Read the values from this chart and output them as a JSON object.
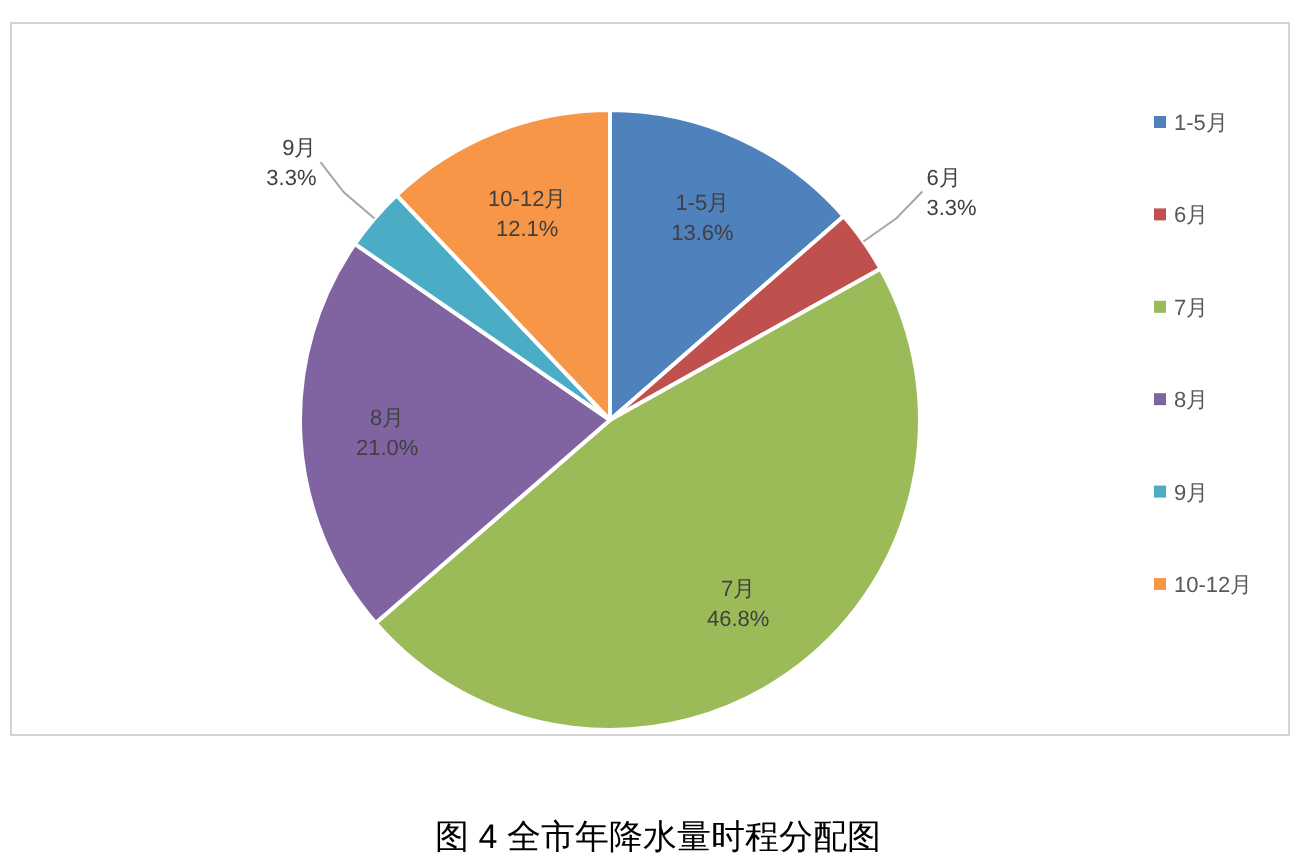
{
  "chart_data": {
    "type": "pie",
    "title": "图 4 全市年降水量时程分配图",
    "categories": [
      "1-5月",
      "6月",
      "7月",
      "8月",
      "9月",
      "10-12月"
    ],
    "values": [
      13.6,
      3.3,
      46.8,
      21.0,
      3.3,
      12.1
    ],
    "value_labels": [
      "13.6%",
      "3.3%",
      "46.8%",
      "21.0%",
      "3.3%",
      "12.1%"
    ],
    "colors": [
      "#4f81bd",
      "#c0504d",
      "#9bbb59",
      "#8064a2",
      "#4bacc6",
      "#f79646"
    ],
    "legend": "right"
  }
}
